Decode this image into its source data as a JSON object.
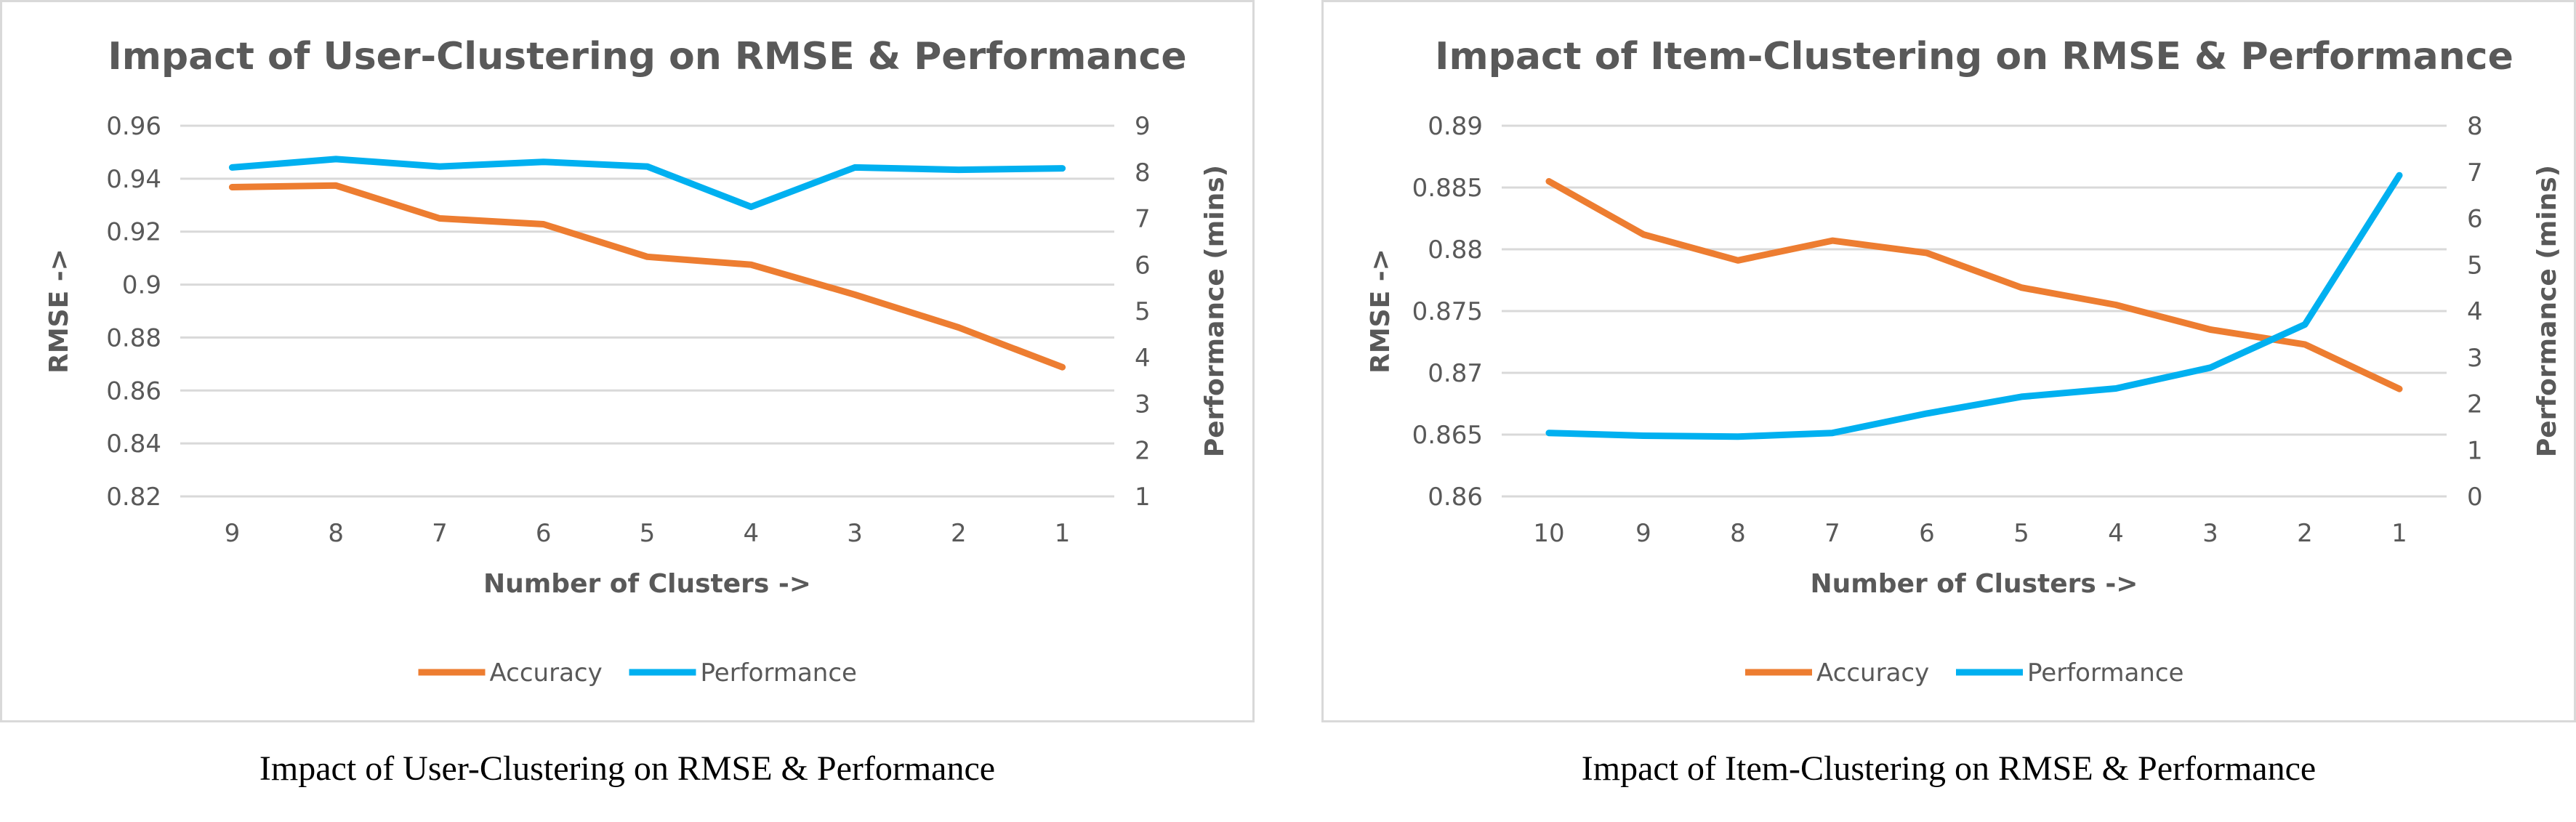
{
  "chart_data": [
    {
      "type": "line",
      "title": "Impact of User-Clustering on RMSE & Performance",
      "xlabel": "Number of Clusters ->",
      "ylabel": "RMSE ->",
      "y2label": "Performance (mins)",
      "categories": [
        "9",
        "8",
        "7",
        "6",
        "5",
        "4",
        "3",
        "2",
        "1"
      ],
      "ylim": [
        0.82,
        0.96
      ],
      "y_ticks": [
        "0.82",
        "0.84",
        "0.86",
        "0.88",
        "0.9",
        "0.92",
        "0.94",
        "0.96"
      ],
      "y2lim": [
        1,
        9
      ],
      "y2_ticks": [
        "1",
        "2",
        "3",
        "4",
        "5",
        "6",
        "7",
        "8",
        "9"
      ],
      "series": [
        {
          "name": "Accuracy",
          "axis": "left",
          "color": "#ed7d31",
          "values": [
            0.9368,
            0.9374,
            0.925,
            0.9228,
            0.9105,
            0.9075,
            0.8962,
            0.8838,
            0.8688
          ]
        },
        {
          "name": "Performance",
          "axis": "right",
          "color": "#00b0f0",
          "values": [
            8.1,
            8.28,
            8.12,
            8.22,
            8.12,
            7.25,
            8.1,
            8.05,
            8.08
          ]
        }
      ],
      "grid": true,
      "legend": "bottom"
    },
    {
      "type": "line",
      "title": "Impact of Item-Clustering on RMSE & Performance",
      "xlabel": "Number of Clusters ->",
      "ylabel": "RMSE ->",
      "y2label": "Performance (mins)",
      "categories": [
        "10",
        "9",
        "8",
        "7",
        "6",
        "5",
        "4",
        "3",
        "2",
        "1"
      ],
      "ylim": [
        0.86,
        0.89
      ],
      "y_ticks": [
        "0.86",
        "0.865",
        "0.87",
        "0.875",
        "0.88",
        "0.885",
        "0.89"
      ],
      "y2lim": [
        0,
        8
      ],
      "y2_ticks": [
        "0",
        "1",
        "2",
        "3",
        "4",
        "5",
        "6",
        "7",
        "8"
      ],
      "series": [
        {
          "name": "Accuracy",
          "axis": "left",
          "color": "#ed7d31",
          "values": [
            0.8855,
            0.8812,
            0.8791,
            0.8807,
            0.8797,
            0.8769,
            0.8755,
            0.8735,
            0.8723,
            0.8687
          ]
        },
        {
          "name": "Performance",
          "axis": "right",
          "color": "#00b0f0",
          "values": [
            1.37,
            1.31,
            1.29,
            1.37,
            1.79,
            2.15,
            2.33,
            2.78,
            3.71,
            6.93
          ]
        }
      ],
      "grid": true,
      "legend": "bottom"
    }
  ],
  "captions": [
    "Impact of User-Clustering on RMSE & Performance",
    "Impact of Item-Clustering on RMSE & Performance"
  ]
}
